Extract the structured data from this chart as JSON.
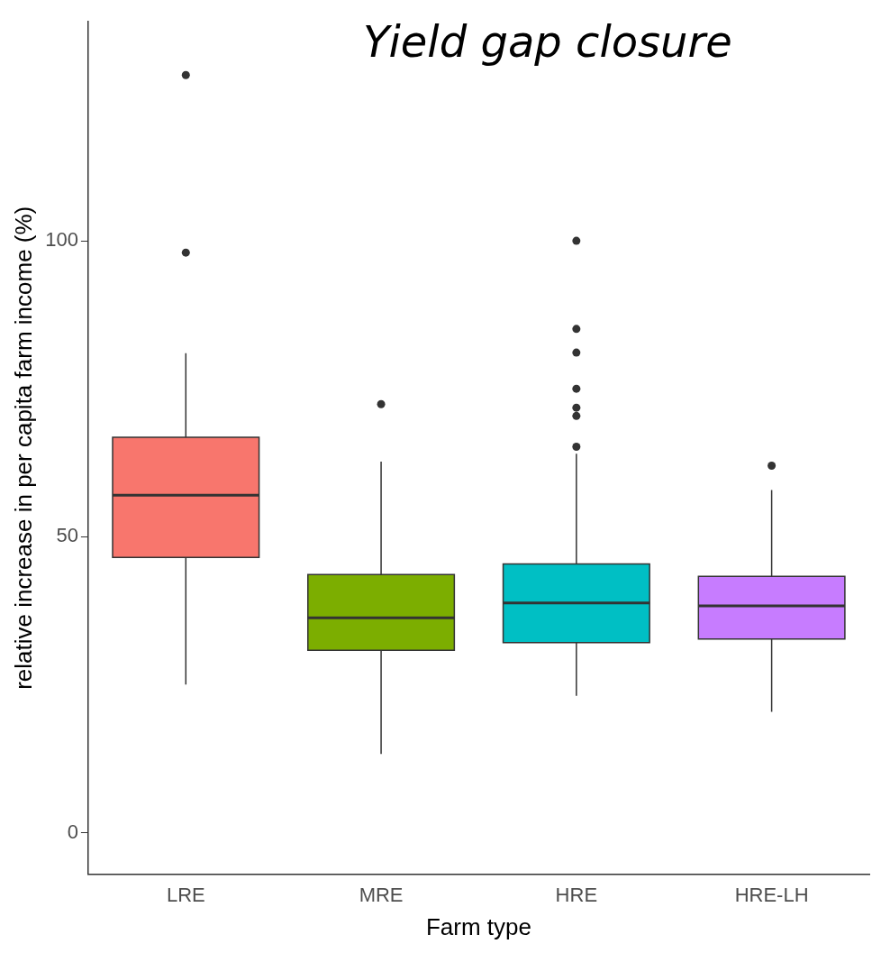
{
  "chart_data": {
    "type": "box",
    "title": "Yield gap closure",
    "xlabel": "Farm type",
    "ylabel": "relative increase in per capita farm income (%)",
    "categories": [
      "LRE",
      "MRE",
      "HRE",
      "HRE-LH"
    ],
    "colors": [
      "#f8766d",
      "#7cae00",
      "#00bfc4",
      "#c77cff"
    ],
    "boxes": [
      {
        "low": 25,
        "q1": 46.5,
        "median": 57,
        "q3": 66.8,
        "high": 81,
        "outliers": [
          98,
          128
        ]
      },
      {
        "low": 13.3,
        "q1": 30.8,
        "median": 36.3,
        "q3": 43.6,
        "high": 62.7,
        "outliers": [
          72.4
        ]
      },
      {
        "low": 23.1,
        "q1": 32.1,
        "median": 38.8,
        "q3": 45.4,
        "high": 64,
        "outliers": [
          65.2,
          70.4,
          71.8,
          75,
          81.1,
          85.1,
          100
        ]
      },
      {
        "low": 20.4,
        "q1": 32.7,
        "median": 38.3,
        "q3": 43.3,
        "high": 57.9,
        "outliers": [
          62
        ]
      }
    ],
    "ylim": [
      -7,
      137
    ],
    "yticks": [
      0,
      50,
      100
    ],
    "grid": false,
    "legend": false
  }
}
